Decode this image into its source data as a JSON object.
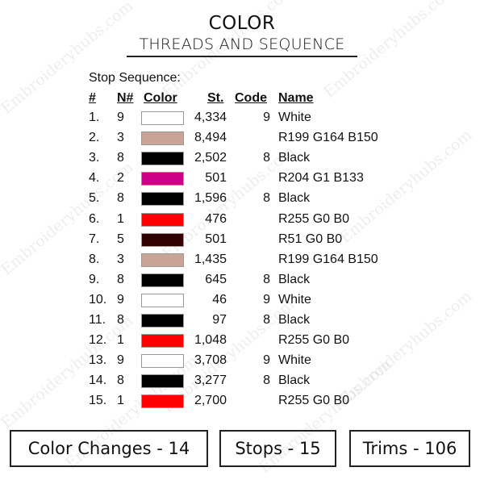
{
  "watermark": "Embroideryhubs.com",
  "header": {
    "title": "COLOR",
    "subtitle": "THREADS AND SEQUENCE"
  },
  "stop_sequence_label": "Stop Sequence:",
  "columns": [
    "#",
    "N#",
    "Color",
    "St.",
    "Code",
    "Name"
  ],
  "rows": [
    {
      "num": "1.",
      "n": "9",
      "color": "#ffffff",
      "st": "4,334",
      "code": "9",
      "name": "White"
    },
    {
      "num": "2.",
      "n": "3",
      "color": "#c7a496",
      "st": "8,494",
      "code": "",
      "name": "R199 G164 B150"
    },
    {
      "num": "3.",
      "n": "8",
      "color": "#000000",
      "st": "2,502",
      "code": "8",
      "name": "Black"
    },
    {
      "num": "4.",
      "n": "2",
      "color": "#cc0185",
      "st": "501",
      "code": "",
      "name": "R204 G1 B133"
    },
    {
      "num": "5.",
      "n": "8",
      "color": "#000000",
      "st": "1,596",
      "code": "8",
      "name": "Black"
    },
    {
      "num": "6.",
      "n": "1",
      "color": "#ff0000",
      "st": "476",
      "code": "",
      "name": "R255 G0 B0"
    },
    {
      "num": "7.",
      "n": "5",
      "color": "#330000",
      "st": "501",
      "code": "",
      "name": "R51 G0 B0"
    },
    {
      "num": "8.",
      "n": "3",
      "color": "#c7a496",
      "st": "1,435",
      "code": "",
      "name": "R199 G164 B150"
    },
    {
      "num": "9.",
      "n": "8",
      "color": "#000000",
      "st": "645",
      "code": "8",
      "name": "Black"
    },
    {
      "num": "10.",
      "n": "9",
      "color": "#ffffff",
      "st": "46",
      "code": "9",
      "name": "White"
    },
    {
      "num": "11.",
      "n": "8",
      "color": "#000000",
      "st": "97",
      "code": "8",
      "name": "Black"
    },
    {
      "num": "12.",
      "n": "1",
      "color": "#ff0000",
      "st": "1,048",
      "code": "",
      "name": "R255 G0 B0"
    },
    {
      "num": "13.",
      "n": "9",
      "color": "#ffffff",
      "st": "3,708",
      "code": "9",
      "name": "White"
    },
    {
      "num": "14.",
      "n": "8",
      "color": "#000000",
      "st": "3,277",
      "code": "8",
      "name": "Black"
    },
    {
      "num": "15.",
      "n": "1",
      "color": "#ff0000",
      "st": "2,700",
      "code": "",
      "name": "R255 G0 B0"
    }
  ],
  "summary": {
    "color_changes": "Color Changes - 14",
    "stops": "Stops - 15",
    "trims": "Trims - 106"
  }
}
